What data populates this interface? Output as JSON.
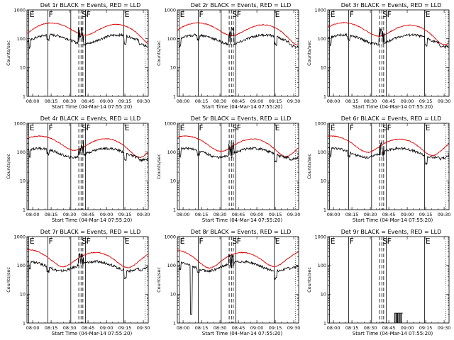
{
  "chart_data": [
    {
      "type": "line",
      "title": "Det 1r BLACK = Events, RED = LLD",
      "xlabel": "Start Time (04-Mar-14 07:55:20)",
      "ylabel": "Counts/sec"
    },
    {
      "type": "line",
      "title": "Det 2r BLACK = Events, RED = LLD",
      "xlabel": "Start Time (04-Mar-14 07:55:20)",
      "ylabel": "Counts/sec"
    },
    {
      "type": "line",
      "title": "Det 3r BLACK = Events, RED = LLD",
      "xlabel": "Start Time (04-Mar-14 07:55:20)",
      "ylabel": "Counts/sec"
    },
    {
      "type": "line",
      "title": "Det 4r BLACK = Events, RED = LLD",
      "xlabel": "Start Time (04-Mar-14 07:55:20)",
      "ylabel": "Counts/sec"
    },
    {
      "type": "line",
      "title": "Det 5r BLACK = Events, RED = LLD",
      "xlabel": "Start Time (04-Mar-14 07:55:20)",
      "ylabel": "Counts/sec"
    },
    {
      "type": "line",
      "title": "Det 6r BLACK = Events, RED = LLD",
      "xlabel": "Start Time (04-Mar-14 07:55:20)",
      "ylabel": "Counts/sec"
    },
    {
      "type": "line",
      "title": "Det 7r BLACK = Events, RED = LLD",
      "xlabel": "Start Time (04-Mar-14 07:55:20)",
      "ylabel": "Counts/sec"
    },
    {
      "type": "line",
      "title": "Det 8r BLACK = Events, RED = LLD",
      "xlabel": "Start Time (04-Mar-14 07:55:20)",
      "ylabel": "Counts/sec"
    },
    {
      "type": "line",
      "title": "Det 9r BLACK = Events, RED = LLD",
      "xlabel": "Start Time (04-Mar-14 07:55:20)",
      "ylabel": "Counts/sec"
    }
  ],
  "shared": {
    "scale": "log",
    "ylim": [
      1,
      1000
    ],
    "xlim": [
      "07:55:20",
      "09:34:00"
    ],
    "y_ticks": [
      1,
      10,
      100,
      1000
    ],
    "y_tick_labels": [
      "1",
      "10",
      "100",
      "1000"
    ],
    "x_ticks": [
      "08:00",
      "08:15",
      "08:30",
      "08:45",
      "09:00",
      "09:15",
      "09:30"
    ],
    "marker_labels": [
      "E",
      "F",
      "S",
      "F",
      "E"
    ],
    "colors": {
      "events": "#000000",
      "lld": "#dd0000",
      "axes": "#000000"
    }
  }
}
